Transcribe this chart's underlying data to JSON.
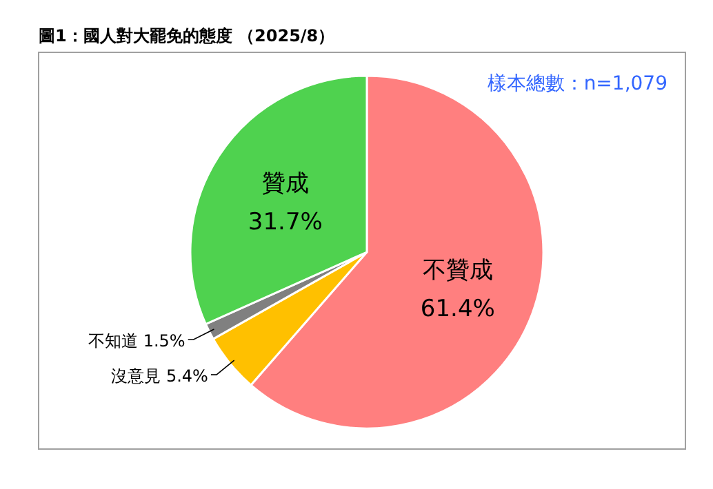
{
  "chart_data": {
    "type": "pie",
    "title": "圖1：國人對大罷免的態度 （2025/8）",
    "annotations": [
      "樣本總數：n=1,079"
    ],
    "categories": [
      "不贊成",
      "沒意見",
      "不知道",
      "贊成"
    ],
    "values": [
      61.4,
      5.4,
      1.5,
      31.7
    ],
    "colors": [
      "#ff7f7f",
      "#ffc000",
      "#808080",
      "#4fd24f"
    ],
    "value_labels": [
      "61.4%",
      "5.4%",
      "1.5%",
      "31.7%"
    ]
  }
}
